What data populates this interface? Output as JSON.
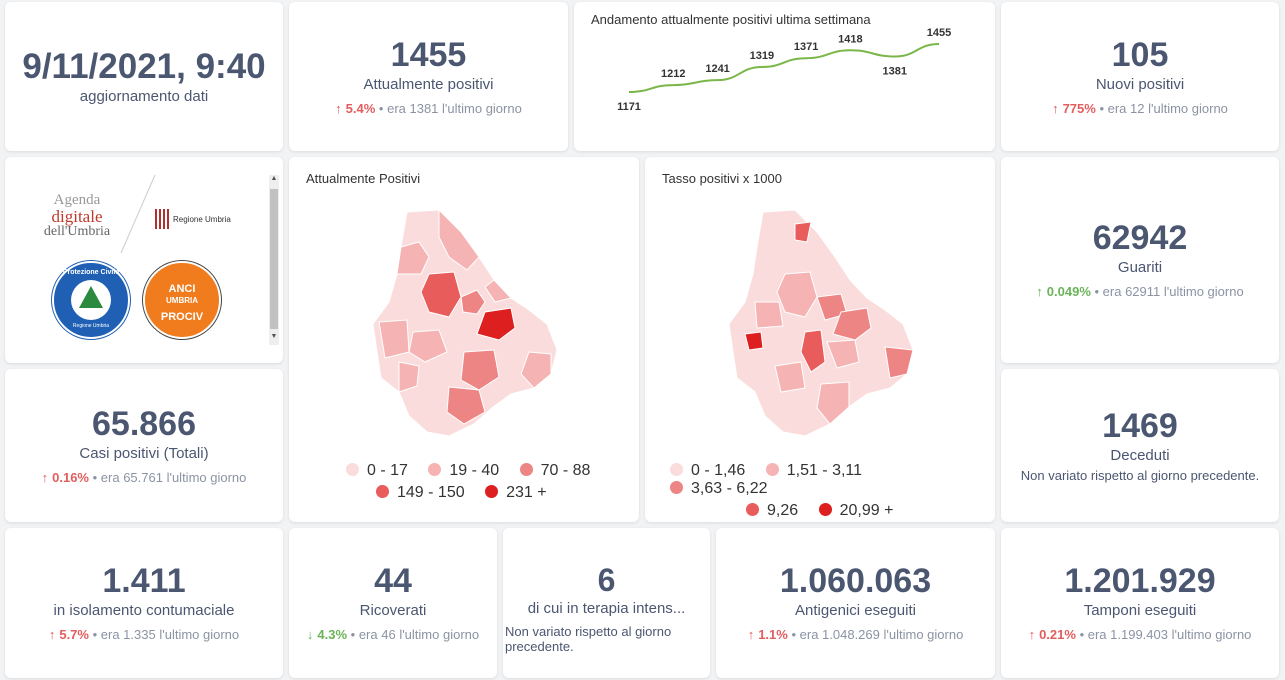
{
  "update": {
    "datetime": "9/11/2021, 9:40",
    "label": "aggiornamento dati"
  },
  "attualmente": {
    "value": "1455",
    "label": "Attualmente positivi",
    "pct": "5.4%",
    "prev": "• era 1381",
    "tail": "l'ultimo giorno"
  },
  "trend": {
    "title": "Andamento attualmente positivi ultima settimana",
    "chart_data": {
      "type": "line",
      "values": [
        1171,
        1212,
        1241,
        1319,
        1371,
        1418,
        1381,
        1455
      ],
      "labels": [
        "1171",
        "1212",
        "1241",
        "1319",
        "1371",
        "1418",
        "1381",
        "1455"
      ],
      "color": "#7ab648"
    }
  },
  "nuovi": {
    "value": "105",
    "label": "Nuovi positivi",
    "pct": "775%",
    "prev": "• era 12",
    "tail": "l'ultimo giorno"
  },
  "logos": {
    "agenda1": "Agenda",
    "agenda2": "digitale",
    "agenda3": "dell'Umbria",
    "regione": "Regione Umbria",
    "protezione": "Protezione Civile",
    "protezione_sub": "Regione Umbria",
    "anci1": "ANCI",
    "anci2": "UMBRIA",
    "anci3": "PROCIV"
  },
  "map1": {
    "title": "Attualmente Positivi",
    "legend": [
      "0 - 17",
      "19 - 40",
      "70 - 88",
      "149 - 150",
      "231 +"
    ]
  },
  "map2": {
    "title": "Tasso positivi x 1000",
    "legend": [
      "0 - 1,46",
      "1,51 - 3,11",
      "3,63 - 6,22",
      "9,26",
      "20,99 +"
    ]
  },
  "legend_colors": [
    "#fbdcdc",
    "#f5b3b3",
    "#ee8585",
    "#e85c5c",
    "#dd1f1f"
  ],
  "guariti": {
    "value": "62942",
    "label": "Guariti",
    "pct": "0.049%",
    "prev": "• era 62911",
    "tail": "l'ultimo giorno"
  },
  "casi": {
    "value": "65.866",
    "label": "Casi positivi (Totali)",
    "pct": "0.16%",
    "prev": "• era 65.761",
    "tail": "l'ultimo giorno"
  },
  "deceduti": {
    "value": "1469",
    "label": "Deceduti",
    "note": "Non variato rispetto al giorno precedente."
  },
  "isolamento": {
    "value": "1.411",
    "label": "in isolamento contumaciale",
    "pct": "5.7%",
    "prev": "• era 1.335",
    "tail": "l'ultimo giorno"
  },
  "ricoverati": {
    "value": "44",
    "label": "Ricoverati",
    "pct": "4.3%",
    "prev": "• era 46",
    "tail": "l'ultimo giorno"
  },
  "terapia": {
    "value": "6",
    "label": "di cui in terapia intens...",
    "note": "Non variato rispetto al giorno precedente."
  },
  "antigenici": {
    "value": "1.060.063",
    "label": "Antigenici eseguiti",
    "pct": "1.1%",
    "prev": "• era 1.048.269",
    "tail": "l'ultimo giorno"
  },
  "tamponi": {
    "value": "1.201.929",
    "label": "Tamponi eseguiti",
    "pct": "0.21%",
    "prev": "• era 1.199.403",
    "tail": "l'ultimo giorno"
  }
}
